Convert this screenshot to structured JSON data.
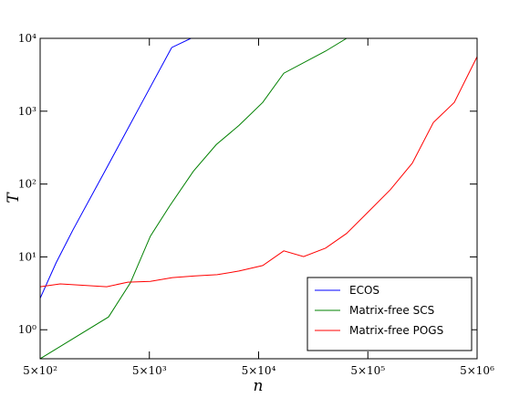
{
  "chart_data": {
    "type": "line",
    "xlabel": "n",
    "ylabel": "T",
    "xscale": "log",
    "yscale": "log",
    "xlim": [
      500,
      5000000
    ],
    "ylim": [
      0.4,
      10000
    ],
    "xticks": [
      {
        "value": 500,
        "label": "5×10²"
      },
      {
        "value": 5000,
        "label": "5×10³"
      },
      {
        "value": 50000,
        "label": "5×10⁴"
      },
      {
        "value": 500000,
        "label": "5×10⁵"
      },
      {
        "value": 5000000,
        "label": "5×10⁶"
      }
    ],
    "yticks": [
      {
        "value": 1,
        "label": "10⁰"
      },
      {
        "value": 10,
        "label": "10¹"
      },
      {
        "value": 100,
        "label": "10²"
      },
      {
        "value": 1000,
        "label": "10³"
      },
      {
        "value": 10000,
        "label": "10⁴"
      }
    ],
    "legend": "lower right",
    "series": [
      {
        "name": "ECOS",
        "color": "#0000ff",
        "x": [
          500,
          700,
          1000,
          2000,
          4000,
          8000,
          12000
        ],
        "values": [
          2.7,
          8.3,
          23.5,
          159,
          1090,
          7480,
          10000
        ]
      },
      {
        "name": "Matrix-free SCS",
        "color": "#008000",
        "x": [
          500,
          2115,
          3350,
          5100,
          7670,
          12650,
          20500,
          33100,
          54500,
          85000,
          205000,
          320000
        ],
        "values": [
          0.4,
          1.5,
          4.4,
          19.2,
          50,
          150,
          348,
          638,
          1320,
          3320,
          6670,
          10000
        ]
      },
      {
        "name": "Matrix-free POGS",
        "color": "#ff0000",
        "x": [
          500,
          764,
          2035,
          3170,
          5100,
          8130,
          13150,
          20900,
          33100,
          54500,
          85000,
          129000,
          205000,
          320000,
          497000,
          805000,
          1277000,
          1990000,
          3090000,
          5000000
        ],
        "values": [
          3.9,
          4.26,
          3.9,
          4.5,
          4.6,
          5.2,
          5.5,
          5.7,
          6.4,
          7.6,
          12.1,
          10.1,
          13.2,
          21,
          40.6,
          84,
          194,
          700,
          1320,
          5600
        ]
      }
    ]
  }
}
